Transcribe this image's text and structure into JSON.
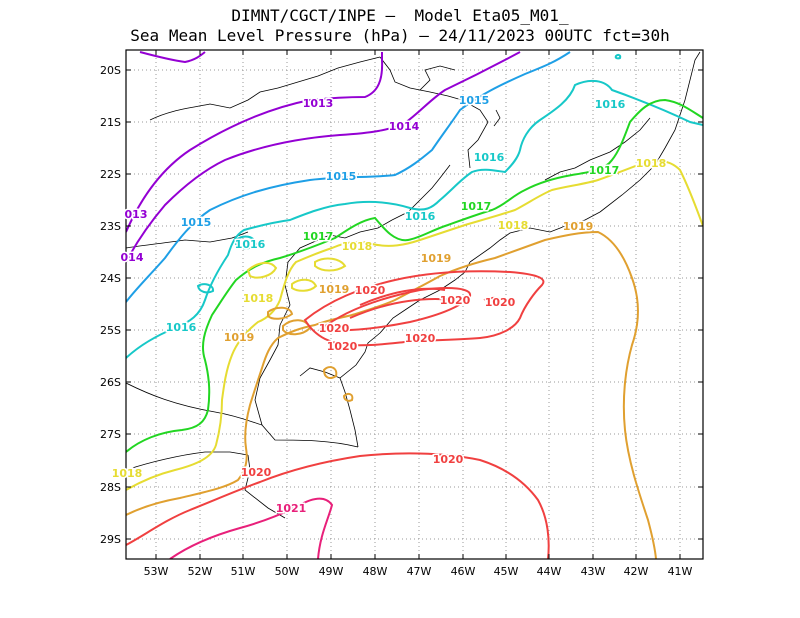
{
  "title_line1": "DIMNT/CGCT/INPE –  Model Eta05_M01_",
  "title_line2": "Sea Mean Level Pressure (hPa) – 24/11/2023 00UTC fct=30h",
  "lat_labels": [
    "20S",
    "21S",
    "22S",
    "23S",
    "24S",
    "25S",
    "26S",
    "27S",
    "28S",
    "29S"
  ],
  "lon_labels": [
    "53W",
    "52W",
    "51W",
    "50W",
    "49W",
    "48W",
    "47W",
    "46W",
    "45W",
    "44W",
    "43W",
    "42W",
    "41W"
  ],
  "colors": {
    "1013": "#9400d3",
    "1014": "#9400d3",
    "1015": "#1e9fe6",
    "1016": "#17c8c8",
    "1017": "#22d622",
    "1018": "#e6dc32",
    "1019": "#e0a030",
    "1020": "#f04040",
    "1021": "#e8207a"
  },
  "contour_labels": [
    {
      "text": "1013",
      "level": "1013"
    },
    {
      "text": "013",
      "level": "1013"
    },
    {
      "text": "014",
      "level": "1014"
    },
    {
      "text": "1014",
      "level": "1014"
    },
    {
      "text": "1015",
      "level": "1015"
    },
    {
      "text": "1015",
      "level": "1015"
    },
    {
      "text": "1015",
      "level": "1015"
    },
    {
      "text": "1016",
      "level": "1016"
    },
    {
      "text": "1016",
      "level": "1016"
    },
    {
      "text": "1016",
      "level": "1016"
    },
    {
      "text": "1016",
      "level": "1016"
    },
    {
      "text": "1016",
      "level": "1016"
    },
    {
      "text": "1017",
      "level": "1017"
    },
    {
      "text": "1017",
      "level": "1017"
    },
    {
      "text": "1017",
      "level": "1017"
    },
    {
      "text": "1018",
      "level": "1018"
    },
    {
      "text": "1018",
      "level": "1018"
    },
    {
      "text": "1018",
      "level": "1018"
    },
    {
      "text": "1018",
      "level": "1018"
    },
    {
      "text": "1018",
      "level": "1018"
    },
    {
      "text": "1019",
      "level": "1019"
    },
    {
      "text": "1019",
      "level": "1019"
    },
    {
      "text": "1019",
      "level": "1019"
    },
    {
      "text": "1019",
      "level": "1019"
    },
    {
      "text": "1020",
      "level": "1020"
    },
    {
      "text": "1020",
      "level": "1020"
    },
    {
      "text": "1020",
      "level": "1020"
    },
    {
      "text": "1020",
      "level": "1020"
    },
    {
      "text": "1020",
      "level": "1020"
    },
    {
      "text": "1020",
      "level": "1020"
    },
    {
      "text": "1020",
      "level": "1020"
    },
    {
      "text": "1020",
      "level": "1020"
    },
    {
      "text": "1021",
      "level": "1021"
    }
  ]
}
